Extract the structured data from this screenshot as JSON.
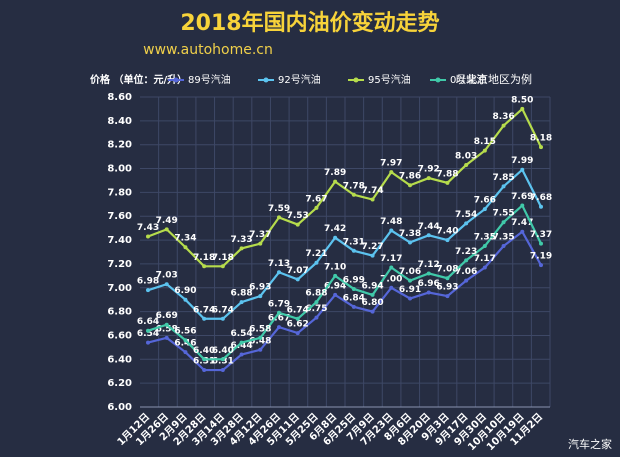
{
  "chart_data": {
    "type": "line",
    "title": "2018年国内油价变动走势",
    "subtitle": "www.autohome.cn",
    "y_label": "价格 （单位：元/升）",
    "note": "以北京地区为例",
    "watermark": "汽车之家",
    "categories": [
      "1月12日",
      "1月26日",
      "2月9日",
      "2月28日",
      "3月14日",
      "3月28日",
      "4月12日",
      "4月26日",
      "5月11日",
      "5月25日",
      "6月8日",
      "6月25日",
      "7月9日",
      "7月23日",
      "8月6日",
      "8月20日",
      "9月3日",
      "9月17日",
      "9月30日",
      "10月10日",
      "10月19日",
      "11月2日"
    ],
    "series": [
      {
        "name": "89号汽油",
        "color": "#5566d8",
        "values": [
          6.54,
          6.58,
          6.46,
          6.31,
          6.31,
          6.44,
          6.48,
          6.67,
          6.62,
          6.75,
          6.94,
          6.84,
          6.8,
          7.0,
          6.91,
          6.96,
          6.93,
          7.06,
          7.17,
          7.35,
          7.47,
          7.19
        ],
        "value_labels": [
          "6.54",
          "6.58",
          "6.46",
          "6.31",
          "6.31",
          "6.44",
          "6.48",
          "6.67",
          "6.62",
          "6.75",
          "6.94",
          "6.84",
          "6.80",
          "7.00",
          "6.91",
          "6.96",
          "6.93",
          "7.06",
          "7.17",
          "7.35",
          "7.47",
          "7.19"
        ]
      },
      {
        "name": "92号汽油",
        "color": "#5cc3ef",
        "values": [
          6.98,
          7.03,
          6.9,
          6.74,
          6.74,
          6.88,
          6.93,
          7.13,
          7.07,
          7.21,
          7.42,
          7.31,
          7.27,
          7.48,
          7.38,
          7.44,
          7.4,
          7.54,
          7.66,
          7.85,
          7.99,
          7.68
        ],
        "value_labels": [
          "6.98",
          "7.03",
          "6.90",
          "6.74",
          "6.74",
          "6.88",
          "6.93",
          "7.13",
          "7.07",
          "7.21",
          "7.42",
          "7.31",
          "7.27",
          "7.48",
          "7.38",
          "7.44",
          "7.40",
          "7.54",
          "7.66",
          "7.85",
          "7.99",
          "7.68"
        ]
      },
      {
        "name": "95号汽油",
        "color": "#b6dc4c",
        "values": [
          7.43,
          7.49,
          7.34,
          7.18,
          7.18,
          7.33,
          7.37,
          7.59,
          7.53,
          7.67,
          7.89,
          7.78,
          7.74,
          7.97,
          7.86,
          7.92,
          7.88,
          8.03,
          8.15,
          8.36,
          8.5,
          8.18
        ],
        "value_labels": [
          "7.43",
          "7.49",
          "7.34",
          "7.18",
          "7.18",
          "7.33",
          "7.37",
          "7.59",
          "7.53",
          "7.67",
          "7.89",
          "7.78",
          "7.74",
          "7.97",
          "7.86",
          "7.92",
          "7.88",
          "8.03",
          "8.15",
          "8.36",
          "8.50",
          "8.18"
        ]
      },
      {
        "name": "0号柴油",
        "color": "#40c9a9",
        "values": [
          6.64,
          6.69,
          6.56,
          6.4,
          6.4,
          6.54,
          6.58,
          6.79,
          6.74,
          6.88,
          7.1,
          6.99,
          6.94,
          7.17,
          7.06,
          7.12,
          7.08,
          7.23,
          7.35,
          7.55,
          7.69,
          7.37
        ],
        "value_labels": [
          "6.64",
          "6.69",
          "6.56",
          "6.40",
          "6.40",
          "6.54",
          "6.58",
          "6.79",
          "6.74",
          "6.88",
          "7.10",
          "6.99",
          "6.94",
          "7.17",
          "7.06",
          "7.12",
          "7.08",
          "7.23",
          "7.35",
          "7.55",
          "7.69",
          "7.37"
        ]
      }
    ],
    "ylim": [
      6.0,
      8.6
    ],
    "yticks": [
      {
        "value": 6.0,
        "label": "6.00"
      },
      {
        "value": 6.2,
        "label": "6.20"
      },
      {
        "value": 6.4,
        "label": "6.40"
      },
      {
        "value": 6.6,
        "label": "6.60"
      },
      {
        "value": 6.8,
        "label": "6.80"
      },
      {
        "value": 7.0,
        "label": "7.00"
      },
      {
        "value": 7.2,
        "label": "7.20"
      },
      {
        "value": 7.4,
        "label": "7.40"
      },
      {
        "value": 7.6,
        "label": "7.60"
      },
      {
        "value": 7.8,
        "label": "7.80"
      },
      {
        "value": 8.0,
        "label": "8.00"
      },
      {
        "value": 8.2,
        "label": "8.20"
      },
      {
        "value": 8.4,
        "label": "8.40"
      },
      {
        "value": 8.6,
        "label": "8.60"
      }
    ],
    "grid": true
  }
}
